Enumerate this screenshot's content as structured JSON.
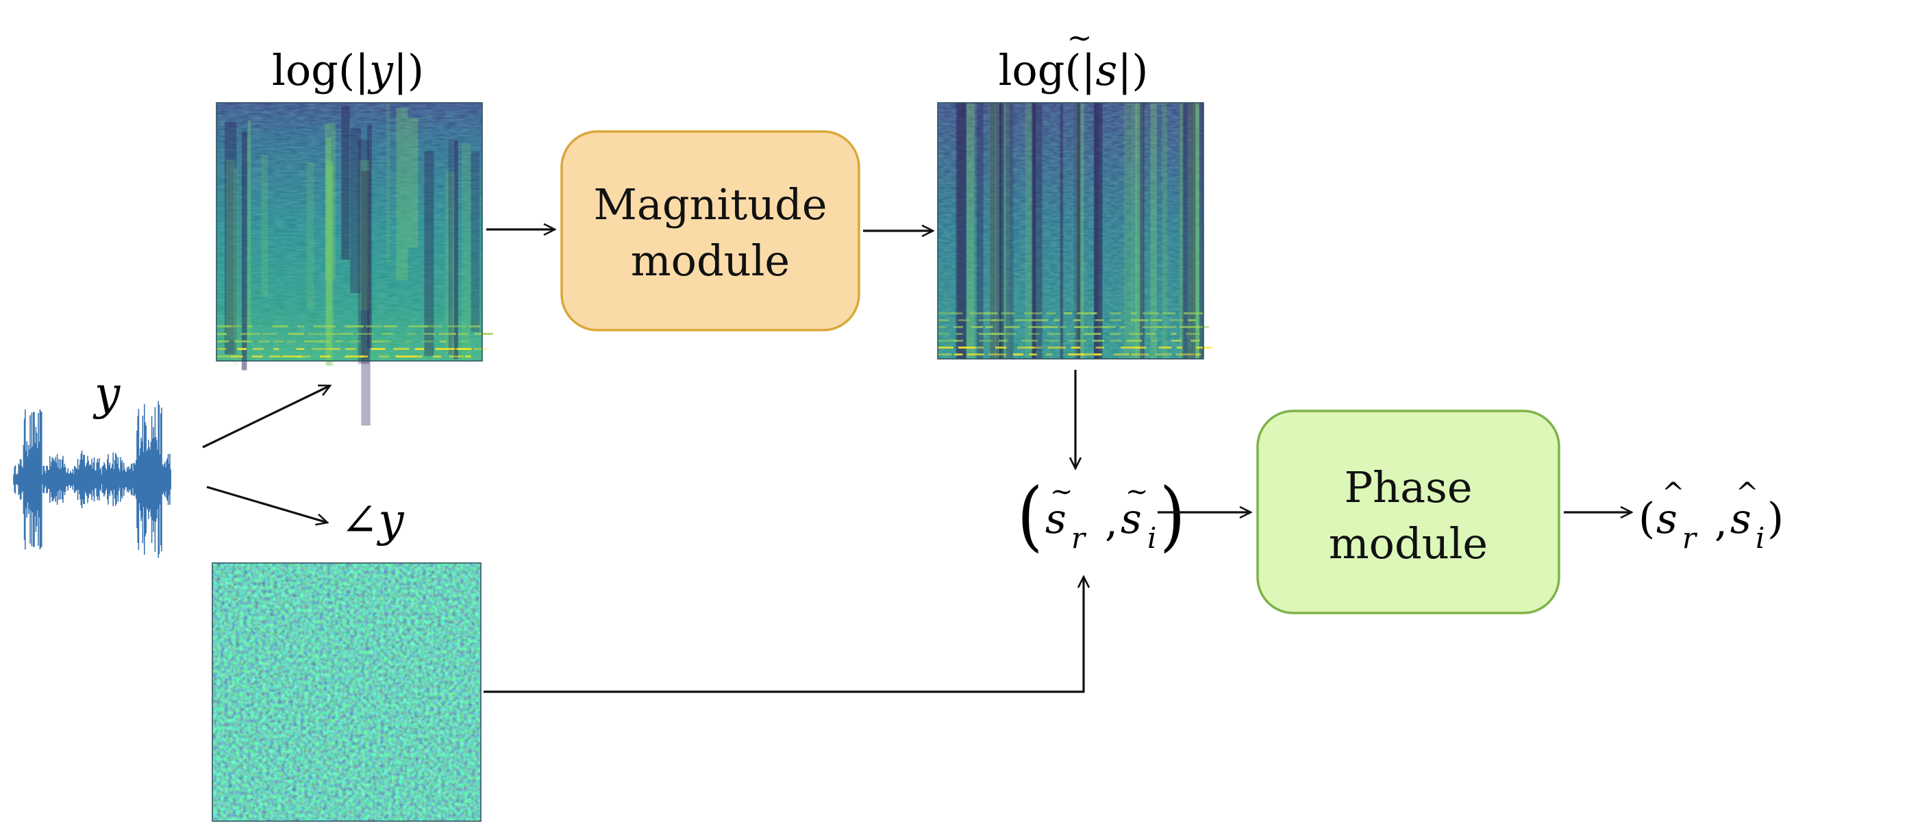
{
  "inputs": {
    "waveform_label": "y",
    "angle_label": "∠y"
  },
  "spectrograms": {
    "noisy_magnitude": {
      "label_pre": "log(|",
      "label_var": "y",
      "label_post": "|)"
    },
    "enhanced_magnitude": {
      "label_pre": "log(|",
      "label_var": "s",
      "label_post": "|)"
    }
  },
  "modules": {
    "magnitude": {
      "line1": "Magnitude",
      "line2": "module",
      "fill": "#fadba8",
      "stroke": "#d9a83a"
    },
    "phase": {
      "line1": "Phase",
      "line2": "module",
      "fill": "#dcf7b8",
      "stroke": "#7fb347"
    }
  },
  "intermediate": {
    "open": "(",
    "var1": "s",
    "sub1": "r",
    "sep": ",",
    "var2": "s",
    "sub2": "i",
    "close": ")"
  },
  "output": {
    "open": "(",
    "var1": "s",
    "sub1": "r",
    "sep": ",",
    "var2": "s",
    "sub2": "i",
    "close": ")"
  },
  "colors": {
    "waveform": "#3a74b0",
    "arrow": "#111111",
    "viridis_dark": "#30285c",
    "viridis_mid": "#21918c",
    "viridis_bright": "#fde725"
  }
}
